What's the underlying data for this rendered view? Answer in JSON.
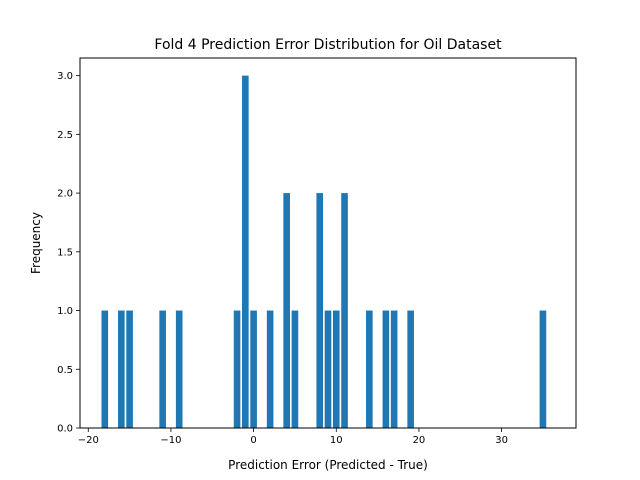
{
  "chart_data": {
    "type": "bar",
    "title": "Fold 4 Prediction Error Distribution for Oil Dataset",
    "xlabel": "Prediction Error (Predicted - True)",
    "ylabel": "Frequency",
    "xlim": [
      -21,
      39
    ],
    "ylim": [
      0,
      3.15
    ],
    "xticks": [
      -20,
      -10,
      0,
      10,
      20,
      30
    ],
    "xtick_labels": [
      "−20",
      "−10",
      "0",
      "10",
      "20",
      "30"
    ],
    "yticks": [
      0,
      0.5,
      1,
      1.5,
      2,
      2.5,
      3
    ],
    "ytick_labels": [
      "0.0",
      "0.5",
      "1.0",
      "1.5",
      "2.0",
      "2.5",
      "3.0"
    ],
    "bar_width": 0.8,
    "grid": false,
    "color": "#1f77b4",
    "bars": [
      {
        "x": -18,
        "count": 1
      },
      {
        "x": -16,
        "count": 1
      },
      {
        "x": -15,
        "count": 1
      },
      {
        "x": -11,
        "count": 1
      },
      {
        "x": -9,
        "count": 1
      },
      {
        "x": -2,
        "count": 1
      },
      {
        "x": -1,
        "count": 3
      },
      {
        "x": 0,
        "count": 1
      },
      {
        "x": 2,
        "count": 1
      },
      {
        "x": 4,
        "count": 2
      },
      {
        "x": 5,
        "count": 1
      },
      {
        "x": 8,
        "count": 2
      },
      {
        "x": 9,
        "count": 1
      },
      {
        "x": 10,
        "count": 1
      },
      {
        "x": 11,
        "count": 2
      },
      {
        "x": 14,
        "count": 1
      },
      {
        "x": 16,
        "count": 1
      },
      {
        "x": 17,
        "count": 1
      },
      {
        "x": 19,
        "count": 1
      },
      {
        "x": 35,
        "count": 1
      }
    ]
  }
}
